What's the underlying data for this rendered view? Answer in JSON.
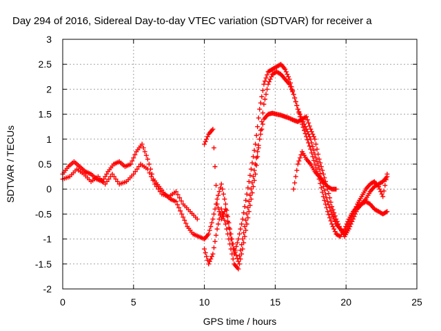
{
  "chart_data": {
    "type": "scatter",
    "title": "Day 294 of 2016, Sidereal Day-to-day VTEC variation (SDTVAR) for receiver a",
    "xlabel": "GPS time / hours",
    "ylabel": "SDTVAR / TECUs",
    "xlim": [
      0,
      25
    ],
    "ylim": [
      -2,
      3
    ],
    "xticks": [
      0,
      5,
      10,
      15,
      20,
      25
    ],
    "yticks": [
      -2,
      -1.5,
      -1,
      -0.5,
      0,
      0.5,
      1,
      1.5,
      2,
      2.5,
      3
    ],
    "xtick_labels": [
      "0",
      "5",
      "10",
      "15",
      "20",
      "25"
    ],
    "ytick_labels": [
      "-2",
      "-1.5",
      "-1",
      "-0.5",
      "0",
      "0.5",
      "1",
      "1.5",
      "2",
      "2.5",
      "3"
    ],
    "grid": true,
    "marker": "+",
    "color": "#ff0000",
    "series": [
      {
        "x": [
          0,
          0.4,
          0.8,
          1.2,
          1.6,
          2.0,
          2.4,
          2.8,
          3.2,
          3.6,
          4.0,
          4.4,
          4.8,
          5.2,
          5.6,
          6.0,
          6.4,
          6.8,
          7.2,
          7.6,
          8.0,
          8.4,
          8.8,
          9.2,
          9.6,
          10.0
        ],
        "y": [
          0.3,
          0.45,
          0.55,
          0.45,
          0.35,
          0.3,
          0.2,
          0.15,
          0.35,
          0.5,
          0.55,
          0.45,
          0.5,
          0.75,
          0.9,
          0.6,
          0.2,
          0.05,
          -0.1,
          -0.2,
          -0.25,
          -0.5,
          -0.75,
          -0.9,
          -0.95,
          -1.0
        ]
      },
      {
        "x": [
          0,
          0.5,
          1.0,
          1.5,
          2.0,
          2.5,
          3.0,
          3.5,
          4.0,
          4.5,
          5.0,
          5.5,
          6.0,
          6.5,
          7.0,
          7.5,
          8.0,
          8.5,
          9.0,
          9.5
        ],
        "y": [
          0.2,
          0.25,
          0.4,
          0.3,
          0.15,
          0.25,
          0.1,
          0.3,
          0.1,
          0.15,
          0.3,
          0.5,
          0.4,
          0.1,
          -0.1,
          -0.15,
          -0.05,
          -0.3,
          -0.45,
          -0.6
        ]
      },
      {
        "x": [
          10.0,
          10.3,
          10.6,
          10.9,
          11.2,
          11.5,
          11.8,
          12.1,
          12.4,
          12.7,
          13.0,
          13.3,
          13.6,
          13.9,
          14.2,
          14.5,
          14.8,
          15.1,
          15.4,
          15.7,
          16.0,
          16.3,
          16.6,
          16.9,
          17.2,
          17.5,
          17.8,
          18.1,
          18.4,
          18.7,
          19.0,
          19.3,
          19.6,
          19.9,
          20.2,
          20.5,
          20.8,
          21.1,
          21.4,
          21.7,
          22.0,
          22.3,
          22.6,
          22.9
        ],
        "y": [
          -1.0,
          -0.9,
          -0.6,
          -0.2,
          0.1,
          -0.3,
          -0.8,
          -1.2,
          -1.45,
          -1.0,
          -0.5,
          0.0,
          0.5,
          1.0,
          1.4,
          1.5,
          1.52,
          1.5,
          1.48,
          1.45,
          1.42,
          1.38,
          1.35,
          1.4,
          1.45,
          1.2,
          1.0,
          0.6,
          0.3,
          0.0,
          -0.35,
          -0.6,
          -0.8,
          -0.95,
          -0.8,
          -0.6,
          -0.4,
          -0.3,
          -0.2,
          -0.05,
          0.05,
          0.1,
          0.15,
          0.25
        ]
      },
      {
        "x": [
          10.0,
          10.3,
          10.6,
          10.9,
          11.2,
          11.5,
          11.8,
          12.1,
          12.4,
          12.7,
          13.0,
          13.3,
          13.6,
          13.9,
          14.2,
          14.5,
          14.8,
          15.1,
          15.4,
          15.7,
          16.0,
          16.3,
          16.6,
          16.9,
          17.2,
          17.5,
          17.8,
          18.1,
          18.4,
          18.7,
          19.0,
          19.3,
          19.6,
          19.9,
          20.2,
          20.5,
          20.8,
          21.1,
          21.4,
          21.7,
          22.0,
          22.3,
          22.6,
          22.9
        ],
        "y": [
          -1.2,
          -1.5,
          -1.3,
          -0.8,
          -0.4,
          -0.7,
          -1.1,
          -1.5,
          -1.6,
          -1.2,
          -0.7,
          -0.2,
          0.3,
          1.0,
          1.7,
          2.1,
          2.3,
          2.35,
          2.3,
          2.2,
          2.1,
          1.9,
          1.6,
          1.3,
          1.05,
          0.8,
          0.5,
          0.2,
          -0.15,
          -0.45,
          -0.7,
          -0.9,
          -0.95,
          -0.8,
          -0.6,
          -0.45,
          -0.35,
          -0.3,
          -0.25,
          -0.3,
          -0.4,
          -0.45,
          -0.5,
          -0.45
        ]
      },
      {
        "x": [
          10.0,
          10.3,
          10.6,
          10.9,
          11.2,
          11.5,
          11.8,
          12.1,
          12.4,
          12.7,
          13.0,
          13.3,
          13.6,
          13.9,
          14.2,
          14.5,
          14.8,
          15.1,
          15.4,
          15.7,
          16.0,
          16.3,
          16.6,
          16.9,
          17.2,
          17.5,
          17.8,
          18.1,
          18.4,
          18.7,
          19.0,
          19.3,
          19.6,
          19.9,
          20.2,
          20.5,
          20.8,
          21.1,
          21.4,
          21.7,
          22.0,
          22.3,
          22.6,
          22.9
        ],
        "y": [
          0.9,
          1.1,
          1.2,
          -0.3,
          -0.6,
          -0.4,
          -0.9,
          -1.3,
          -1.0,
          -0.6,
          -0.1,
          0.4,
          0.9,
          1.6,
          2.1,
          2.35,
          2.4,
          2.45,
          2.5,
          2.4,
          2.2,
          1.9,
          1.6,
          1.4,
          1.2,
          1.0,
          0.7,
          0.4,
          0.05,
          -0.25,
          -0.5,
          -0.7,
          -0.8,
          -0.9,
          -0.7,
          -0.5,
          -0.3,
          -0.15,
          0.0,
          0.1,
          0.15,
          0.05,
          -0.15,
          0.3
        ]
      },
      {
        "x": [
          16.3,
          16.6,
          16.9,
          17.2,
          17.5,
          17.8,
          18.1,
          18.4,
          18.7,
          19.0,
          19.3
        ],
        "y": [
          0.0,
          0.5,
          0.75,
          0.6,
          0.5,
          0.35,
          0.25,
          0.15,
          0.05,
          0.0,
          0.0
        ]
      }
    ]
  }
}
